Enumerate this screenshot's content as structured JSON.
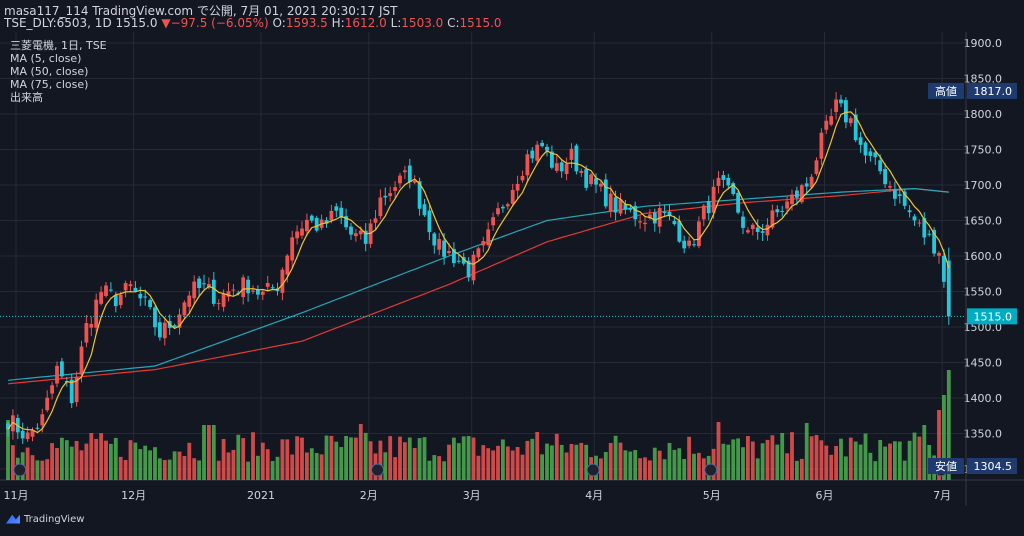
{
  "header": {
    "line1": "masa117_114 TradingView.com で公開, 7月 01, 2021 20:30:17 JST",
    "symbol": "TSE_DLY:6503, 1D",
    "last": "1515.0",
    "change": "−97.5 (−6.05%)",
    "o_label": "O:",
    "o_val": "1593.5",
    "h_label": "H:",
    "h_val": "1612.0",
    "l_label": "L:",
    "l_val": "1503.0",
    "c_label": "C:",
    "c_val": "1515.0"
  },
  "legend": {
    "title": "三菱電機, 1日, TSE",
    "ma5": "MA (5, close)",
    "ma50": "MA (50, close)",
    "ma75": "MA (75, close)",
    "volume": "出来高"
  },
  "footer": {
    "brand": "TradingView"
  },
  "colors": {
    "bg": "#131722",
    "up": "#ef5350",
    "down": "#26c6da",
    "vol_up": "#ef5350",
    "vol_down": "#4caf50",
    "ma5": "#f0c330",
    "ma50": "#26a6b8",
    "ma75": "#e53935",
    "grid": "#262a36",
    "axis_text": "#d1d4dc"
  },
  "chart_data": {
    "type": "candlestick",
    "y_ticks": [
      "1900.0",
      "1850.0",
      "1800.0",
      "1750.0",
      "1700.0",
      "1650.0",
      "1600.0",
      "1550.0",
      "1500.0",
      "1450.0",
      "1400.0",
      "1350.0",
      "1300.0"
    ],
    "ylim": [
      1300,
      1920
    ],
    "x_ticks": [
      "11月",
      "12月",
      "2021",
      "2月",
      "3月",
      "4月",
      "5月",
      "6月",
      "7月"
    ],
    "price_labels": [
      {
        "label": "高値",
        "value": "1817.0"
      },
      {
        "label": "",
        "value": "1515.0"
      },
      {
        "label": "安値",
        "value": "1304.5"
      }
    ],
    "anchors_close": [
      [
        0,
        1370
      ],
      [
        4,
        1345
      ],
      [
        7,
        1370
      ],
      [
        10,
        1440
      ],
      [
        13,
        1400
      ],
      [
        16,
        1500
      ],
      [
        19,
        1550
      ],
      [
        22,
        1540
      ],
      [
        25,
        1555
      ],
      [
        28,
        1530
      ],
      [
        31,
        1490
      ],
      [
        34,
        1510
      ],
      [
        37,
        1550
      ],
      [
        40,
        1555
      ],
      [
        43,
        1540
      ],
      [
        46,
        1555
      ],
      [
        49,
        1560
      ],
      [
        52,
        1545
      ],
      [
        55,
        1560
      ],
      [
        58,
        1630
      ],
      [
        61,
        1650
      ],
      [
        64,
        1640
      ],
      [
        67,
        1660
      ],
      [
        70,
        1630
      ],
      [
        73,
        1620
      ],
      [
        76,
        1680
      ],
      [
        79,
        1700
      ],
      [
        82,
        1715
      ],
      [
        85,
        1660
      ],
      [
        88,
        1610
      ],
      [
        91,
        1600
      ],
      [
        94,
        1580
      ],
      [
        97,
        1610
      ],
      [
        100,
        1660
      ],
      [
        103,
        1700
      ],
      [
        106,
        1740
      ],
      [
        109,
        1755
      ],
      [
        112,
        1720
      ],
      [
        115,
        1740
      ],
      [
        118,
        1710
      ],
      [
        121,
        1690
      ],
      [
        124,
        1670
      ],
      [
        127,
        1660
      ],
      [
        130,
        1655
      ],
      [
        133,
        1660
      ],
      [
        136,
        1645
      ],
      [
        139,
        1610
      ],
      [
        142,
        1660
      ],
      [
        145,
        1700
      ],
      [
        148,
        1680
      ],
      [
        151,
        1630
      ],
      [
        154,
        1640
      ],
      [
        157,
        1660
      ],
      [
        160,
        1680
      ],
      [
        163,
        1700
      ],
      [
        166,
        1760
      ],
      [
        169,
        1810
      ],
      [
        172,
        1790
      ],
      [
        175,
        1740
      ],
      [
        178,
        1720
      ],
      [
        181,
        1690
      ],
      [
        184,
        1660
      ],
      [
        187,
        1630
      ],
      [
        190,
        1610
      ],
      [
        192,
        1515
      ]
    ],
    "anchors_ma50": [
      [
        0,
        1425
      ],
      [
        30,
        1445
      ],
      [
        60,
        1520
      ],
      [
        90,
        1600
      ],
      [
        110,
        1650
      ],
      [
        130,
        1670
      ],
      [
        150,
        1680
      ],
      [
        170,
        1690
      ],
      [
        185,
        1695
      ],
      [
        192,
        1690
      ]
    ],
    "anchors_ma75": [
      [
        0,
        1420
      ],
      [
        30,
        1440
      ],
      [
        60,
        1480
      ],
      [
        90,
        1560
      ],
      [
        110,
        1620
      ],
      [
        130,
        1660
      ],
      [
        150,
        1675
      ],
      [
        170,
        1685
      ],
      [
        185,
        1695
      ],
      [
        192,
        1690
      ]
    ],
    "volume_unit": "relative"
  }
}
